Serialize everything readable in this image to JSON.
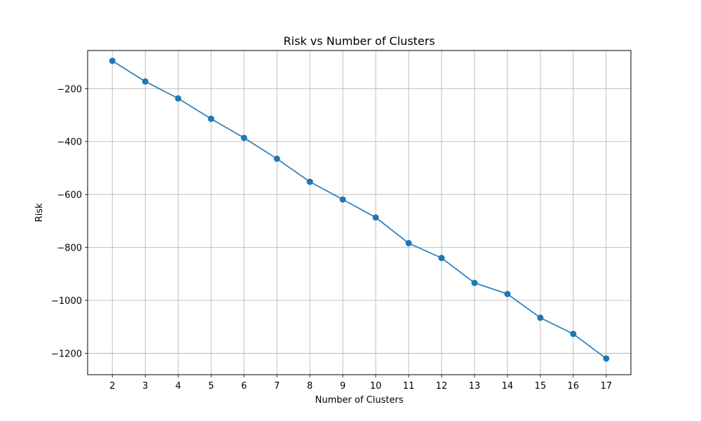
{
  "chart_data": {
    "type": "line",
    "title": "Risk vs Number of Clusters",
    "xlabel": "Number of Clusters",
    "ylabel": "Risk",
    "x": [
      2,
      3,
      4,
      5,
      6,
      7,
      8,
      9,
      10,
      11,
      12,
      13,
      14,
      15,
      16,
      17
    ],
    "series": [
      {
        "values": [
          -95,
          -173,
          -237,
          -314,
          -386,
          -465,
          -552,
          -619,
          -687,
          -784,
          -840,
          -934,
          -976,
          -1066,
          -1127,
          -1220
        ],
        "color": "#1f77b4",
        "marker": "circle"
      }
    ],
    "xlim": [
      1.25,
      17.75
    ],
    "ylim": [
      -1281,
      -56
    ],
    "xticks": [
      2,
      3,
      4,
      5,
      6,
      7,
      8,
      9,
      10,
      11,
      12,
      13,
      14,
      15,
      16,
      17
    ],
    "yticks": [
      -1200,
      -1000,
      -800,
      -600,
      -400,
      -200
    ],
    "ytick_labels": [
      "−1200",
      "−1000",
      "−800",
      "−600",
      "−400",
      "−200"
    ],
    "grid": true
  }
}
